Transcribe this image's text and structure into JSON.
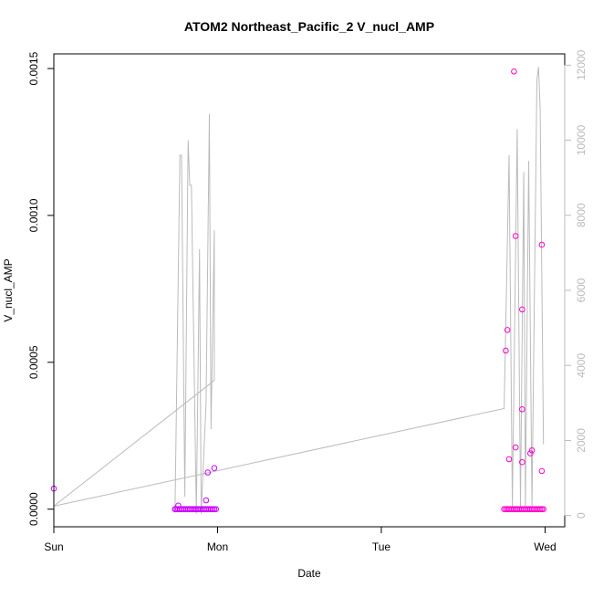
{
  "chart_data": {
    "type": "scatter",
    "title": "ATOM2 Northeast_Pacific_2 V_nucl_AMP",
    "xlabel": "Date",
    "ylabel": "V_nucl_AMP",
    "xlim": [
      0,
      3.12
    ],
    "ylim": [
      -6e-05,
      0.00155
    ],
    "y2lim": [
      -300,
      12300
    ],
    "x_ticks": [
      {
        "value": 0,
        "label": "Sun"
      },
      {
        "value": 1,
        "label": "Mon"
      },
      {
        "value": 2,
        "label": "Tue"
      },
      {
        "value": 3,
        "label": "Wed"
      }
    ],
    "y_ticks": [
      {
        "value": 0,
        "label": "0.0000"
      },
      {
        "value": 0.0005,
        "label": "0.0005"
      },
      {
        "value": 0.001,
        "label": "0.0010"
      },
      {
        "value": 0.0015,
        "label": "0.0015"
      }
    ],
    "y2_ticks": [
      {
        "value": 0,
        "label": "0"
      },
      {
        "value": 2000,
        "label": "2000"
      },
      {
        "value": 4000,
        "label": "4000"
      },
      {
        "value": 6000,
        "label": "6000"
      },
      {
        "value": 8000,
        "label": "8000"
      },
      {
        "value": 10000,
        "label": "10000"
      },
      {
        "value": 12000,
        "label": "12000"
      }
    ],
    "colors": {
      "points_magenta": "#ff00cc",
      "points_purple": "#cc00ff",
      "line": "#bbbbbb",
      "axis": "#000000",
      "axis2": "#bbbbbb"
    },
    "series": [
      {
        "type": "scatter",
        "axis": "left",
        "points": [
          [
            0.0,
            7e-05
          ],
          [
            0.74,
            0.0
          ],
          [
            0.76,
            1.2e-05
          ],
          [
            0.86,
            0.0
          ],
          [
            0.93,
            3e-05
          ],
          [
            0.94,
            0.000125
          ],
          [
            0.98,
            0.00014
          ],
          [
            2.76,
            0.00054
          ],
          [
            2.77,
            0.00061
          ],
          [
            2.78,
            0.00017
          ],
          [
            2.81,
            0.00149
          ],
          [
            2.82,
            0.00093
          ],
          [
            2.82,
            0.00021
          ],
          [
            2.86,
            0.00068
          ],
          [
            2.86,
            0.00034
          ],
          [
            2.86,
            0.00016
          ],
          [
            2.91,
            0.00019
          ],
          [
            2.92,
            0.0002
          ],
          [
            2.98,
            0.0009
          ],
          [
            2.98,
            0.00013
          ]
        ],
        "baseline_points": {
          "ranges": [
            [
              0.74,
              0.99
            ],
            [
              2.75,
              2.99
            ]
          ],
          "step": 0.01,
          "y": 0
        }
      },
      {
        "type": "line",
        "axis": "right",
        "points": [
          [
            0.74,
            80
          ],
          [
            0.77,
            9600
          ],
          [
            0.78,
            9600
          ],
          [
            0.8,
            500
          ],
          [
            0.82,
            10000
          ],
          [
            0.83,
            8800
          ],
          [
            0.84,
            8800
          ],
          [
            0.87,
            50
          ],
          [
            0.89,
            7100
          ],
          [
            0.9,
            50
          ],
          [
            0.93,
            3000
          ],
          [
            0.95,
            10700
          ],
          [
            0.96,
            2300
          ],
          [
            0.98,
            7600
          ],
          [
            0.98,
            3600
          ],
          [
            0.0,
            250
          ],
          [
            2.75,
            2850
          ],
          [
            2.78,
            9600
          ],
          [
            2.8,
            250
          ],
          [
            2.83,
            10300
          ],
          [
            2.85,
            250
          ],
          [
            2.87,
            9150
          ],
          [
            2.88,
            250
          ],
          [
            2.9,
            9450
          ],
          [
            2.92,
            250
          ],
          [
            2.95,
            11600
          ],
          [
            2.96,
            11950
          ],
          [
            2.97,
            10800
          ],
          [
            2.97,
            10800
          ],
          [
            2.99,
            1900
          ]
        ]
      }
    ]
  }
}
